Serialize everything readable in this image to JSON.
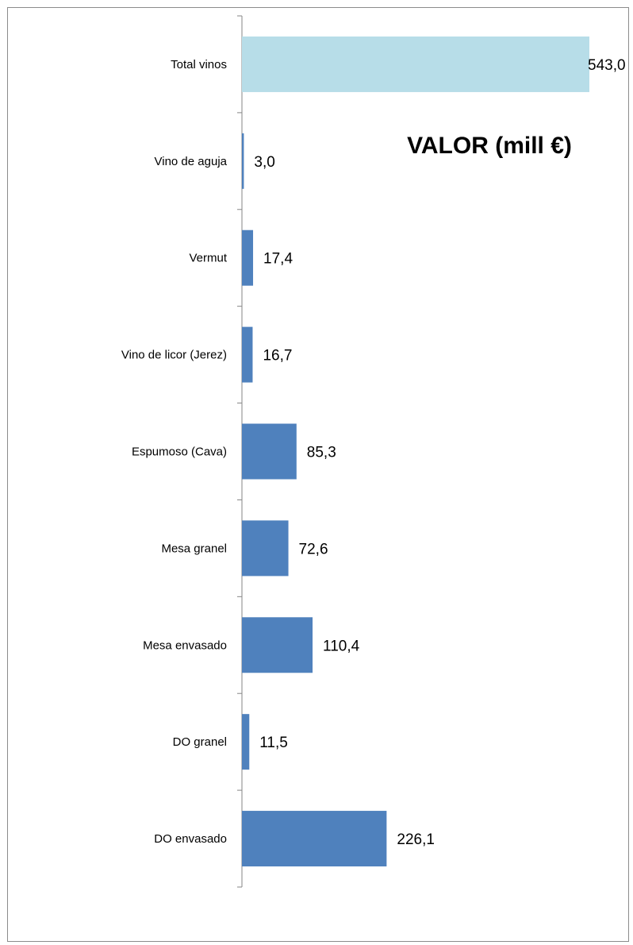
{
  "chart_data": {
    "type": "bar",
    "orientation": "horizontal",
    "title": "VALOR (mill €)",
    "categories": [
      "Total vinos",
      "Vino de aguja",
      "Vermut",
      "Vino de licor (Jerez)",
      "Espumoso (Cava)",
      "Mesa granel",
      "Mesa envasado",
      "DO granel",
      "DO envasado"
    ],
    "values": [
      543.0,
      3.0,
      17.4,
      16.7,
      85.3,
      72.6,
      110.4,
      11.5,
      226.1
    ],
    "value_labels": [
      "543,0",
      "3,0",
      "17,4",
      "16,7",
      "85,3",
      "72,6",
      "110,4",
      "11,5",
      "226,1"
    ],
    "xlim": [
      0,
      543.0
    ],
    "grid": false,
    "legend": "none",
    "colors": {
      "bar": "#4F81BD",
      "total_bar": "#B7DDE8",
      "axis": "#868686",
      "frame": "#8C8C8C"
    }
  }
}
